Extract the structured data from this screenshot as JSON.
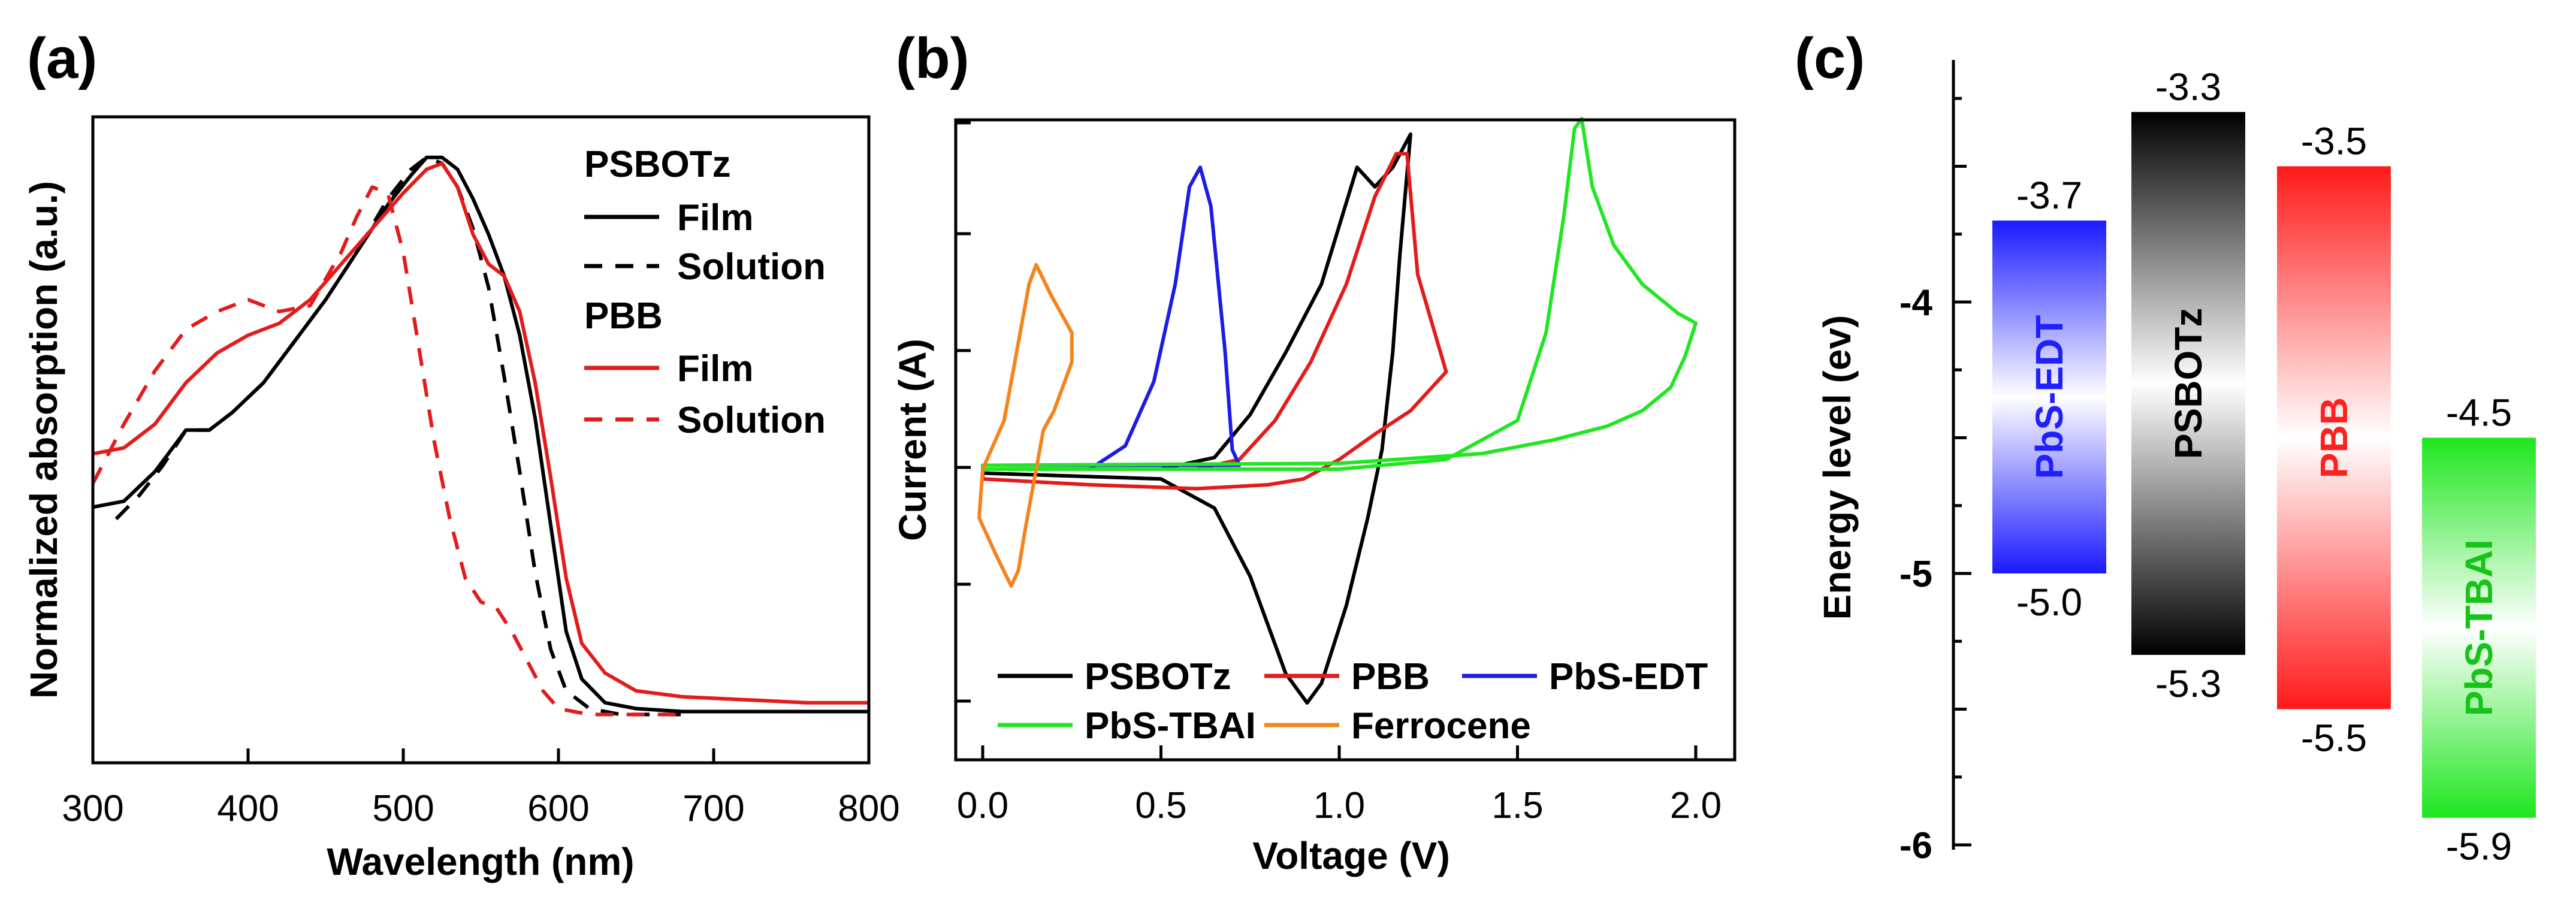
{
  "chart_data": [
    {
      "panel": "(a)",
      "type": "line",
      "xlabel": "Wavelength (nm)",
      "ylabel": "Normalized absorption (a.u.)",
      "xlim": [
        300,
        800
      ],
      "ylim": [
        0,
        1.0
      ],
      "xticks": [
        "300",
        "400",
        "500",
        "600",
        "700",
        "800"
      ],
      "legend": {
        "groups": [
          {
            "title": "PSBOTz",
            "entries": [
              {
                "label": "Film",
                "color": "#000000",
                "dash": "solid"
              },
              {
                "label": "Solution",
                "color": "#000000",
                "dash": "dashed"
              }
            ]
          },
          {
            "title": "PBB",
            "entries": [
              {
                "label": "Film",
                "color": "#e31b1b",
                "dash": "solid"
              },
              {
                "label": "Solution",
                "color": "#e31b1b",
                "dash": "dashed"
              }
            ]
          }
        ]
      },
      "series": [
        {
          "name": "PSBOTz Film",
          "color": "#000000",
          "dash": "solid",
          "x": [
            300,
            320,
            340,
            360,
            375,
            390,
            410,
            430,
            450,
            470,
            490,
            505,
            515,
            525,
            535,
            545,
            555,
            565,
            575,
            585,
            595,
            605,
            615,
            630,
            650,
            680,
            720,
            760,
            800
          ],
          "y": [
            0.39,
            0.4,
            0.45,
            0.52,
            0.52,
            0.55,
            0.6,
            0.67,
            0.74,
            0.82,
            0.9,
            0.95,
            0.98,
            0.98,
            0.96,
            0.91,
            0.85,
            0.78,
            0.68,
            0.54,
            0.36,
            0.18,
            0.1,
            0.06,
            0.05,
            0.045,
            0.045,
            0.045,
            0.045
          ]
        },
        {
          "name": "PSBOTz Solution",
          "color": "#000000",
          "dash": "dashed",
          "x": [
            315,
            330,
            345,
            360,
            375,
            390,
            410,
            430,
            450,
            470,
            490,
            505,
            515,
            525,
            535,
            545,
            555,
            565,
            575,
            585,
            595,
            605,
            620,
            640,
            660,
            680
          ],
          "y": [
            0.37,
            0.41,
            0.46,
            0.52,
            0.52,
            0.55,
            0.6,
            0.67,
            0.74,
            0.82,
            0.91,
            0.96,
            0.98,
            0.97,
            0.93,
            0.86,
            0.76,
            0.61,
            0.45,
            0.28,
            0.15,
            0.08,
            0.05,
            0.04,
            0.04,
            0.04
          ]
        },
        {
          "name": "PBB Film",
          "color": "#e31b1b",
          "dash": "solid",
          "x": [
            300,
            320,
            340,
            360,
            380,
            400,
            420,
            440,
            460,
            480,
            500,
            515,
            525,
            535,
            545,
            555,
            565,
            575,
            585,
            595,
            605,
            615,
            630,
            650,
            680,
            720,
            760,
            800
          ],
          "y": [
            0.48,
            0.49,
            0.53,
            0.6,
            0.65,
            0.68,
            0.7,
            0.74,
            0.8,
            0.86,
            0.92,
            0.96,
            0.97,
            0.93,
            0.85,
            0.8,
            0.78,
            0.72,
            0.6,
            0.44,
            0.27,
            0.16,
            0.11,
            0.08,
            0.07,
            0.065,
            0.06,
            0.06
          ]
        },
        {
          "name": "PBB Solution",
          "color": "#e31b1b",
          "dash": "dashed",
          "x": [
            300,
            320,
            340,
            360,
            380,
            400,
            420,
            440,
            460,
            470,
            480,
            490,
            500,
            510,
            520,
            530,
            540,
            550,
            560,
            570,
            580,
            590,
            600,
            610,
            620,
            640,
            660,
            680
          ],
          "y": [
            0.43,
            0.53,
            0.62,
            0.69,
            0.72,
            0.74,
            0.72,
            0.73,
            0.82,
            0.88,
            0.93,
            0.92,
            0.82,
            0.66,
            0.5,
            0.37,
            0.27,
            0.23,
            0.22,
            0.18,
            0.13,
            0.08,
            0.05,
            0.045,
            0.04,
            0.04,
            0.04,
            0.04
          ]
        }
      ]
    },
    {
      "panel": "(b)",
      "type": "line",
      "xlabel": "Voltage (V)",
      "ylabel": "Current (A)",
      "xlim": [
        -0.1,
        2.1
      ],
      "ylim": [
        -1.5,
        1.9
      ],
      "xticks": [
        "0.0",
        "0.5",
        "1.0",
        "1.5",
        "2.0"
      ],
      "legend": {
        "rows": [
          [
            {
              "label": "PSBOTz",
              "color": "#000000"
            },
            {
              "label": "PBB",
              "color": "#e31b1b"
            },
            {
              "label": "PbS-EDT",
              "color": "#1c1ce6"
            }
          ],
          [
            {
              "label": "PbS-TBAI",
              "color": "#22e622"
            },
            {
              "label": "Ferrocene",
              "color": "#f5841f"
            }
          ]
        ]
      },
      "series": [
        {
          "name": "PSBOTz",
          "color": "#000000",
          "x": [
            0.0,
            0.5,
            0.65,
            0.75,
            0.85,
            0.95,
            1.05,
            1.1,
            1.15,
            1.2,
            1.17,
            1.15,
            1.12,
            1.08,
            1.02,
            0.95,
            0.91,
            0.85,
            0.75,
            0.65,
            0.5,
            0.0
          ],
          "y": [
            0.0,
            0.0,
            0.06,
            0.28,
            0.6,
            0.95,
            1.55,
            1.45,
            1.55,
            1.72,
            1.1,
            0.6,
            0.1,
            -0.25,
            -0.7,
            -1.1,
            -1.2,
            -1.05,
            -0.55,
            -0.2,
            -0.05,
            -0.02
          ]
        },
        {
          "name": "PBB",
          "color": "#e31b1b",
          "x": [
            0.0,
            0.6,
            0.72,
            0.82,
            0.92,
            1.02,
            1.1,
            1.16,
            1.19,
            1.22,
            1.3,
            1.2,
            1.1,
            1.0,
            0.9,
            0.8,
            0.6,
            0.3,
            0.0
          ],
          "y": [
            0.0,
            0.0,
            0.05,
            0.25,
            0.55,
            0.95,
            1.4,
            1.62,
            1.62,
            1.0,
            0.5,
            0.3,
            0.18,
            0.05,
            -0.05,
            -0.08,
            -0.1,
            -0.08,
            -0.05
          ]
        },
        {
          "name": "PbS-EDT",
          "color": "#1c1ce6",
          "x": [
            0.0,
            0.3,
            0.4,
            0.48,
            0.54,
            0.58,
            0.61,
            0.64,
            0.68,
            0.7,
            0.72,
            0.0
          ],
          "y": [
            0.0,
            0.0,
            0.12,
            0.45,
            0.95,
            1.45,
            1.55,
            1.35,
            0.6,
            0.1,
            0.02,
            0.02
          ]
        },
        {
          "name": "PbS-TBAI",
          "color": "#22e622",
          "x": [
            0.0,
            1.0,
            1.3,
            1.5,
            1.58,
            1.63,
            1.66,
            1.68,
            1.71,
            1.77,
            1.85,
            1.95,
            2.0,
            1.97,
            1.93,
            1.85,
            1.75,
            1.6,
            1.4,
            1.0,
            0.0
          ],
          "y": [
            0.0,
            0.0,
            0.05,
            0.25,
            0.7,
            1.3,
            1.75,
            1.8,
            1.45,
            1.15,
            0.95,
            0.8,
            0.75,
            0.58,
            0.42,
            0.3,
            0.22,
            0.15,
            0.08,
            0.03,
            0.02
          ]
        },
        {
          "name": "Ferrocene",
          "color": "#f5841f",
          "x": [
            0.0,
            0.06,
            0.1,
            0.13,
            0.15,
            0.19,
            0.25,
            0.25,
            0.2,
            0.17,
            0.12,
            0.1,
            0.08,
            0.04,
            -0.01,
            0.0
          ],
          "y": [
            0.0,
            0.25,
            0.65,
            0.95,
            1.05,
            0.9,
            0.7,
            0.55,
            0.3,
            0.2,
            -0.3,
            -0.52,
            -0.6,
            -0.45,
            -0.25,
            0.0
          ]
        }
      ]
    },
    {
      "panel": "(c)",
      "type": "bar",
      "ylabel": "Energy level (ev)",
      "ylim": [
        -6.0,
        -3.0
      ],
      "yticks": [
        "-4",
        "-5",
        "-6"
      ],
      "bars": [
        {
          "name": "PbS-EDT",
          "top": -3.7,
          "bottom": -5.0,
          "top_label": "-3.7",
          "bottom_label": "-5.0",
          "color": "#1a1aff",
          "text_color": "#2020ff"
        },
        {
          "name": "PSBOTz",
          "top": -3.3,
          "bottom": -5.3,
          "top_label": "-3.3",
          "bottom_label": "-5.3",
          "color": "#000000",
          "text_color": "#000000"
        },
        {
          "name": "PBB",
          "top": -3.5,
          "bottom": -5.5,
          "top_label": "-3.5",
          "bottom_label": "-5.5",
          "color": "#ff1a1a",
          "text_color": "#ff2020"
        },
        {
          "name": "PbS-TBAI",
          "top": -4.5,
          "bottom": -5.9,
          "top_label": "-4.5",
          "bottom_label": "-5.9",
          "color": "#1ee61e",
          "text_color": "#18c318"
        }
      ]
    }
  ]
}
